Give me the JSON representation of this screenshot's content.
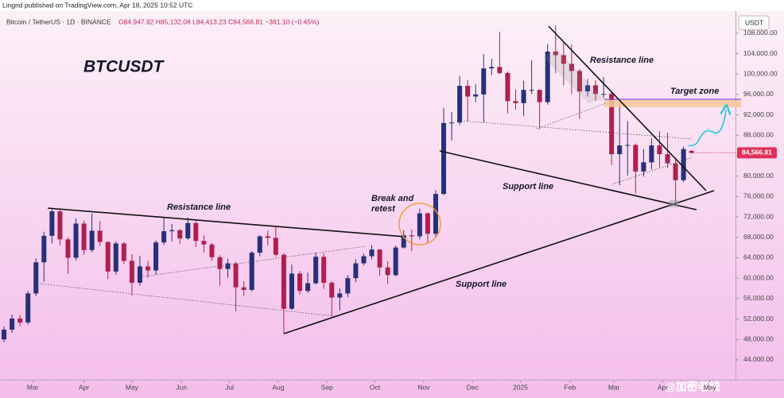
{
  "header": {
    "published": "Lingrid published on TradingView.com, Apr 18, 2025 10:52 UTC",
    "symbol": "Bitcoin / TetherUS · 1D · BINANCE",
    "ohlc": "O84,947.92 H85,132.08 L84,413.23 C84,566.81 −381.10 (−0.45%)",
    "currency": "USDT",
    "watermark": "@加密老钱"
  },
  "chart_data": {
    "type": "candlestick",
    "title": "BTCUSDT",
    "annotations": [
      "Resistance line",
      "Break and",
      "retest",
      "Support line",
      "Support line",
      "Resistance line",
      "Target zone"
    ],
    "categories": [
      null,
      null,
      null,
      null,
      null,
      null,
      null,
      null,
      null,
      null,
      null,
      null,
      null,
      null,
      null,
      null,
      null,
      null,
      null,
      null,
      null,
      null,
      null,
      null,
      null,
      null,
      null,
      null,
      null,
      null,
      null,
      null,
      null,
      null,
      null,
      null,
      null,
      null,
      null,
      null,
      null,
      null,
      null,
      null,
      null,
      null,
      null,
      null,
      null,
      null,
      null,
      null,
      null,
      null,
      null,
      null,
      null,
      null,
      null,
      null,
      null,
      null,
      null,
      null,
      null,
      null,
      null,
      null,
      null,
      null,
      null,
      null,
      null,
      null,
      null,
      null,
      null,
      null,
      null,
      null,
      null,
      null,
      null,
      null,
      null,
      null,
      null
    ],
    "open": [
      48000,
      49900,
      52100,
      51300,
      57000,
      63100,
      68300,
      73100,
      67600,
      64000,
      70700,
      65500,
      69300,
      67100,
      61300,
      66800,
      63400,
      59100,
      62300,
      61500,
      67000,
      69200,
      69400,
      67800,
      70800,
      67300,
      66600,
      64100,
      61800,
      62900,
      58200,
      57700,
      65000,
      68200,
      67900,
      64600,
      54000,
      60900,
      57500,
      59000,
      64200,
      59100,
      56200,
      57000,
      60000,
      62900,
      64300,
      65600,
      62100,
      60600,
      66000,
      68400,
      68200,
      72700,
      68700,
      76500,
      90400,
      90500,
      97700,
      95600,
      96000,
      101100,
      101400,
      100200,
      94700,
      94300,
      96900,
      96900,
      94500,
      104400,
      103700,
      102000,
      100600,
      96600,
      97800,
      96100,
      96100,
      84300,
      86000,
      86100,
      80900,
      82700,
      86000,
      84300,
      82500,
      79200,
      84947.92
    ],
    "high": [
      50500,
      52900,
      52800,
      57500,
      63900,
      69100,
      73800,
      73400,
      68000,
      71700,
      71300,
      72700,
      71200,
      67200,
      67200,
      67100,
      64700,
      64400,
      63400,
      67400,
      71900,
      70600,
      69600,
      71900,
      71200,
      68400,
      66900,
      64500,
      63800,
      63200,
      59400,
      65300,
      68400,
      69300,
      70000,
      64900,
      62700,
      61400,
      61100,
      65000,
      64900,
      59400,
      58000,
      60600,
      63700,
      64800,
      66500,
      65700,
      63300,
      66400,
      69400,
      69500,
      73600,
      72900,
      77200,
      93400,
      92600,
      99600,
      98800,
      98000,
      103900,
      103000,
      108300,
      100500,
      97000,
      98700,
      102700,
      97000,
      105900,
      109500,
      106400,
      105800,
      101000,
      99000,
      98800,
      99400,
      96600,
      95000,
      90800,
      86400,
      85300,
      87400,
      88800,
      88500,
      83600,
      85800,
      85132.08
    ],
    "low": [
      47500,
      49300,
      50600,
      50900,
      56500,
      59300,
      66800,
      66400,
      60800,
      63500,
      64600,
      65100,
      66300,
      59800,
      60700,
      62800,
      56600,
      58500,
      60100,
      60700,
      66500,
      67200,
      66700,
      67500,
      66100,
      65000,
      63400,
      58500,
      60100,
      53500,
      56500,
      57400,
      64300,
      66400,
      64200,
      49100,
      53800,
      56800,
      57100,
      58800,
      57900,
      52600,
      53700,
      56300,
      59200,
      62500,
      63700,
      60500,
      58900,
      60400,
      65800,
      65300,
      67600,
      66800,
      68100,
      76300,
      87000,
      90000,
      90700,
      94500,
      90500,
      99800,
      100000,
      92300,
      93000,
      91800,
      96100,
      89200,
      94000,
      100200,
      97800,
      96100,
      91200,
      95600,
      94800,
      95300,
      82200,
      78200,
      80100,
      76600,
      79900,
      81300,
      81700,
      81600,
      74600,
      78800,
      84413.23
    ],
    "close": [
      49900,
      52100,
      51300,
      57000,
      63100,
      68300,
      73100,
      67600,
      64000,
      70700,
      65500,
      69300,
      67100,
      61300,
      66800,
      63400,
      59100,
      62300,
      61500,
      67000,
      69200,
      69400,
      67800,
      70800,
      67300,
      66600,
      64100,
      61800,
      62900,
      58200,
      57700,
      65000,
      68200,
      67900,
      64600,
      54000,
      60900,
      57500,
      59000,
      64200,
      59100,
      56200,
      57000,
      60000,
      62900,
      64300,
      65600,
      62100,
      60600,
      66000,
      68400,
      68200,
      72700,
      68700,
      76500,
      90400,
      90500,
      97700,
      95600,
      96000,
      101100,
      101400,
      100200,
      94700,
      94300,
      96900,
      96900,
      94500,
      104400,
      103700,
      102000,
      100600,
      96600,
      97800,
      96100,
      96100,
      84300,
      86000,
      86100,
      80900,
      82700,
      86000,
      84300,
      82500,
      79200,
      85300,
      84566.81
    ],
    "last_price_label": "84,566.81",
    "up_color": "#27307a",
    "down_color": "#b0204f",
    "xlim": [
      -0.5,
      91.5
    ],
    "xticks": [
      {
        "value": 3.6,
        "label": "Mar"
      },
      {
        "value": 10,
        "label": "Apr"
      },
      {
        "value": 16,
        "label": "May"
      },
      {
        "value": 22.2,
        "label": "Jun"
      },
      {
        "value": 28.2,
        "label": "Jul"
      },
      {
        "value": 34.3,
        "label": "Aug"
      },
      {
        "value": 40.4,
        "label": "Sep"
      },
      {
        "value": 46.4,
        "label": "Oct"
      },
      {
        "value": 52.5,
        "label": "Nov"
      },
      {
        "value": 58.6,
        "label": "Dec"
      },
      {
        "value": 64.6,
        "label": "2025"
      },
      {
        "value": 70.8,
        "label": "Feb"
      },
      {
        "value": 76.3,
        "label": "Mar"
      },
      {
        "value": 82.4,
        "label": "Apr"
      },
      {
        "value": 88.3,
        "label": "May"
      }
    ],
    "ylim": [
      40000,
      111400
    ],
    "yticks": [
      {
        "value": 44000,
        "label": "44,000.00"
      },
      {
        "value": 48000,
        "label": "48,000.00"
      },
      {
        "value": 52000,
        "label": "52,000.00"
      },
      {
        "value": 56000,
        "label": "56,000.00"
      },
      {
        "value": 60000,
        "label": "60,000.00"
      },
      {
        "value": 64000,
        "label": "64,000.00"
      },
      {
        "value": 68000,
        "label": "68,000.00"
      },
      {
        "value": 72000,
        "label": "72,000.00"
      },
      {
        "value": 76000,
        "label": "76,000.00"
      },
      {
        "value": 80000,
        "label": "80,000.00"
      },
      {
        "value": 84000,
        "label": "84,000.00"
      },
      {
        "value": 88000,
        "label": "88,000.00"
      },
      {
        "value": 92000,
        "label": "92,000.00"
      },
      {
        "value": 96000,
        "label": "96,000.00"
      },
      {
        "value": 100000,
        "label": "100,000.00"
      },
      {
        "value": 104000,
        "label": "104,000.00"
      },
      {
        "value": 108000,
        "label": "108,000.00"
      }
    ]
  }
}
